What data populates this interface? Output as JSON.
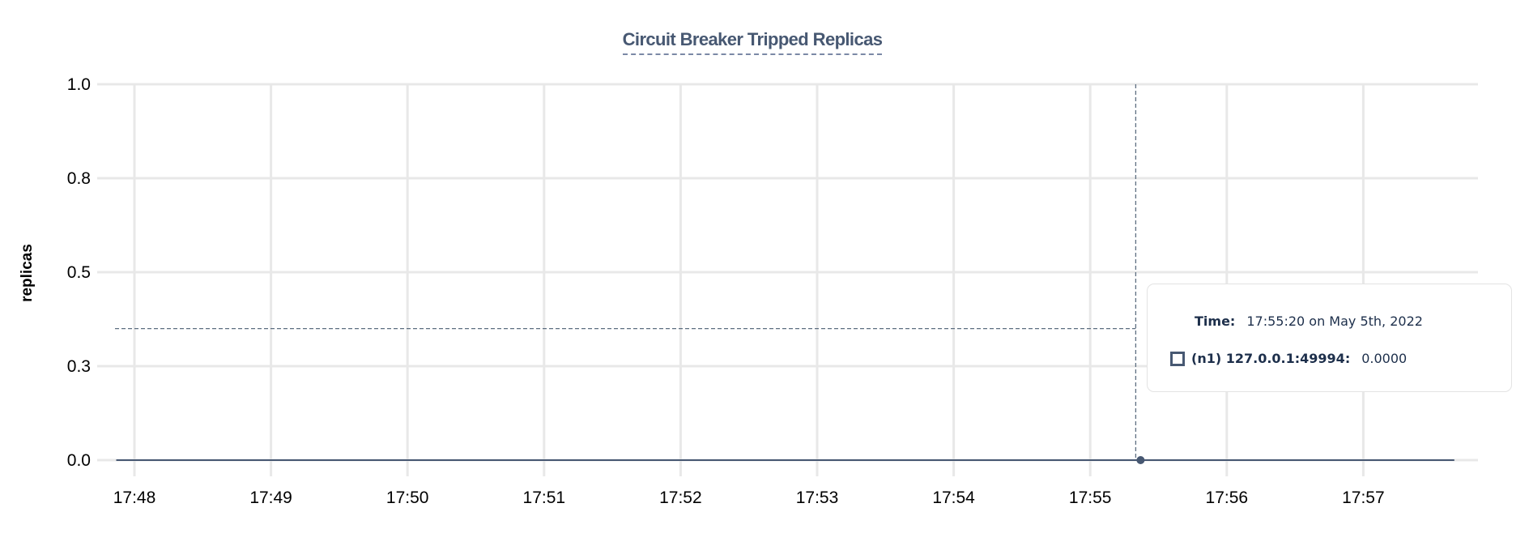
{
  "chart_data": {
    "type": "line",
    "title": "Circuit Breaker Tripped Replicas",
    "xlabel": "",
    "ylabel": "replicas",
    "ylim": [
      0,
      1.0
    ],
    "y_ticks": [
      0.0,
      0.25,
      0.5,
      0.75,
      1.0
    ],
    "y_tick_labels": [
      "0.0",
      "0.3",
      "0.5",
      "0.8",
      "1.0"
    ],
    "x_tick_labels": [
      "17:48",
      "17:49",
      "17:50",
      "17:51",
      "17:52",
      "17:53",
      "17:54",
      "17:55",
      "17:56",
      "17:57"
    ],
    "xlim": [
      "17:47:40",
      "17:58:50"
    ],
    "grid": true,
    "series": [
      {
        "name": "(n1) 127.0.0.1:49994",
        "color": "#475872",
        "x": [
          "17:47:52",
          "17:55:20",
          "17:57:40"
        ],
        "values": [
          0,
          0,
          0
        ]
      }
    ],
    "hover": {
      "x": "17:55:20",
      "crosshair_y": 0.35
    }
  },
  "tooltip": {
    "time_label": "Time:",
    "time_value": "17:55:20 on May 5th, 2022",
    "series_label": "(n1) 127.0.0.1:49994:",
    "series_value": "0.0000"
  }
}
